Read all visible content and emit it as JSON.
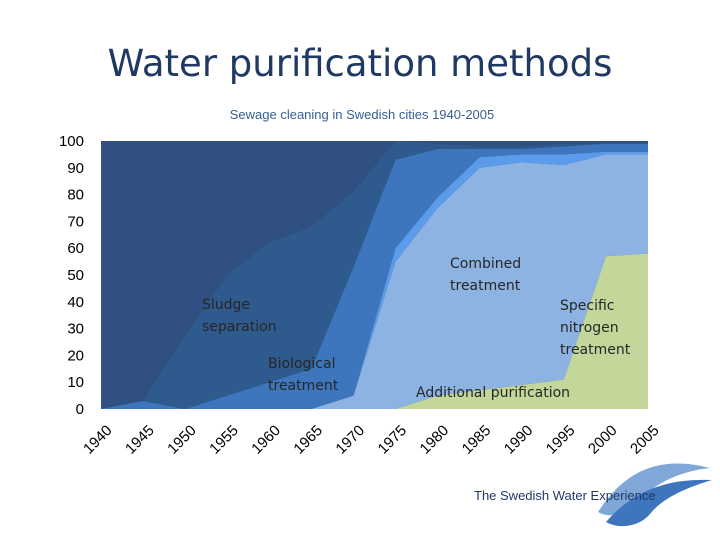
{
  "slide": {
    "title": "Water purification methods"
  },
  "logo": {
    "text": "The Swedish Water Experience"
  },
  "colors": {
    "Sludge separation": "#2f5a8e",
    "Biological treatment": "#3d76bd",
    "Combined treatment": "#5b9bea",
    "Additional purification": "#8db3e2",
    "Specific nitrogen treatment": "#c4d79b",
    "top": "#2f5080",
    "title": "#1f3864"
  },
  "chart_data": {
    "type": "area",
    "stacked": true,
    "title": "Sewage cleaning in Swedish cities 1940-2005",
    "xlabel": "",
    "ylabel": "",
    "ylim": [
      0,
      100
    ],
    "yticks": [
      0,
      10,
      20,
      30,
      40,
      50,
      60,
      70,
      80,
      90,
      100
    ],
    "x": [
      1940,
      1945,
      1950,
      1955,
      1960,
      1965,
      1970,
      1975,
      1980,
      1985,
      1990,
      1995,
      2000,
      2005
    ],
    "series": [
      {
        "name": "Specific nitrogen treatment",
        "values": [
          0,
          0,
          0,
          0,
          0,
          0,
          0,
          0,
          5,
          7,
          9,
          11,
          57,
          58
        ]
      },
      {
        "name": "Additional purification",
        "values": [
          0,
          0,
          0,
          0,
          0,
          0,
          5,
          55,
          70,
          83,
          83,
          80,
          38,
          37
        ]
      },
      {
        "name": "Combined treatment",
        "values": [
          0,
          0,
          0,
          0,
          0,
          0,
          0,
          5,
          4,
          4,
          3,
          4,
          1,
          1
        ]
      },
      {
        "name": "Biological treatment",
        "values": [
          0,
          3,
          0,
          5,
          10,
          15,
          48,
          33,
          18,
          3,
          2,
          3,
          3,
          3
        ]
      },
      {
        "name": "Sludge separation",
        "values": [
          0,
          0,
          27,
          45,
          52,
          53,
          28,
          7,
          2,
          1,
          1,
          1,
          0,
          0
        ]
      }
    ],
    "annotations": [
      {
        "series": "Sludge separation",
        "lines": [
          "Sludge",
          "separation"
        ]
      },
      {
        "series": "Biological treatment",
        "lines": [
          "Biological",
          "treatment"
        ]
      },
      {
        "series": "Combined treatment",
        "lines": [
          "Combined",
          "treatment"
        ]
      },
      {
        "series": "Specific nitrogen treatment",
        "lines": [
          "Specific",
          "nitrogen",
          "treatment"
        ]
      },
      {
        "series": "Additional purification",
        "lines": [
          "Additional purification"
        ]
      }
    ],
    "grid": false,
    "legend": "none"
  }
}
